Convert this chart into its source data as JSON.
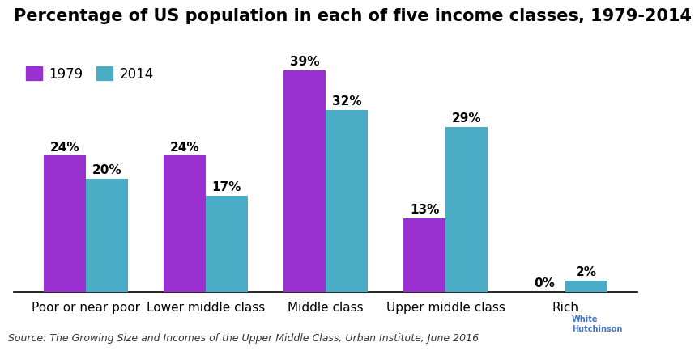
{
  "title": "Percentage of US population in each of five income classes, 1979-2014",
  "categories": [
    "Poor or near poor",
    "Lower middle class",
    "Middle class",
    "Upper middle class",
    "Rich"
  ],
  "values_1979": [
    24,
    24,
    39,
    13,
    0
  ],
  "values_2014": [
    20,
    17,
    32,
    29,
    2
  ],
  "color_1979": "#9b30d0",
  "color_2014": "#4bacc6",
  "legend_labels": [
    "1979",
    "2014"
  ],
  "source_text": "Source: The Growing Size and Incomes of the Upper Middle Class, Urban Institute, June 2016",
  "bar_width": 0.35,
  "ylim": [
    0,
    45
  ],
  "background_color": "#ffffff",
  "title_fontsize": 15,
  "label_fontsize": 11,
  "tick_fontsize": 11,
  "source_fontsize": 9
}
